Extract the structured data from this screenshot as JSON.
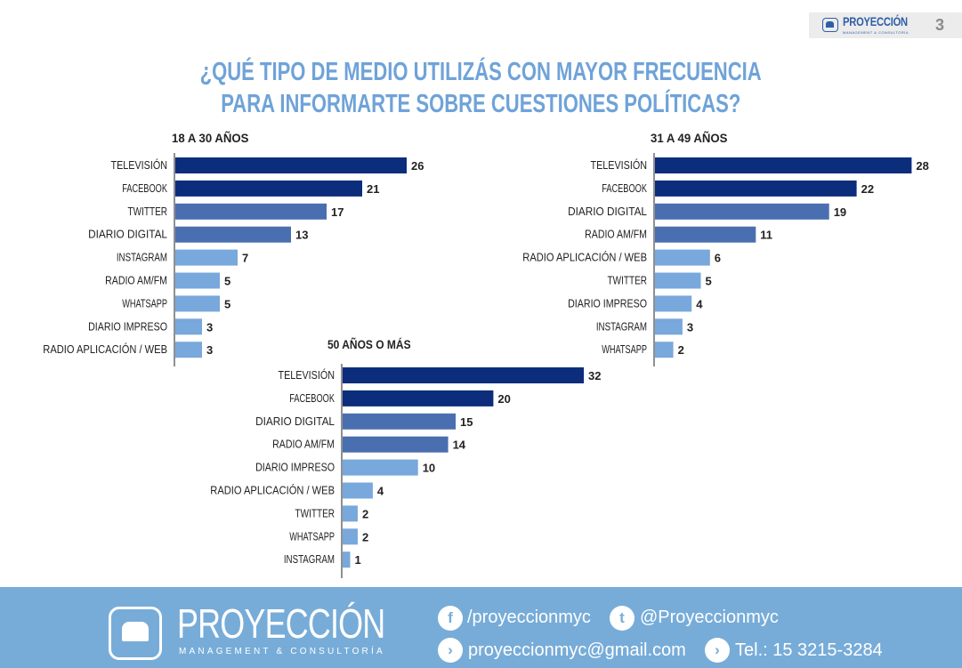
{
  "header": {
    "brand": "PROYECCIÓN",
    "brand_sub": "MANAGEMENT & CONSULTORÍA",
    "page_number": "3"
  },
  "title_lines": [
    "¿QUÉ TIPO DE MEDIO UTILIZÁS CON MAYOR FRECUENCIA",
    "PARA INFORMARTE SOBRE CUESTIONES POLÍTICAS?"
  ],
  "palette": {
    "dark": "#0b2d7c",
    "medium": "#4a6fb0",
    "light": "#78a8dc",
    "title": "#6fa3d8",
    "footer": "#77acd8"
  },
  "chart_data": [
    {
      "type": "bar",
      "orientation": "horizontal",
      "title": "18 A 30 AÑOS",
      "categories": [
        "TELEVISIÓN",
        "FACEBOOK",
        "TWITTER",
        "DIARIO DIGITAL",
        "INSTAGRAM",
        "RADIO AM/FM",
        "WHATSAPP",
        "DIARIO IMPRESO",
        "RADIO APLICACIÓN / WEB"
      ],
      "values": [
        26,
        21,
        17,
        13,
        7,
        5,
        5,
        3,
        3
      ],
      "colors": [
        "#0b2d7c",
        "#0b2d7c",
        "#4a6fb0",
        "#4a6fb0",
        "#78a8dc",
        "#78a8dc",
        "#78a8dc",
        "#78a8dc",
        "#78a8dc"
      ]
    },
    {
      "type": "bar",
      "orientation": "horizontal",
      "title": "31 A 49 AÑOS",
      "categories": [
        "TELEVISIÓN",
        "FACEBOOK",
        "DIARIO DIGITAL",
        "RADIO AM/FM",
        "RADIO APLICACIÓN / WEB",
        "TWITTER",
        "DIARIO IMPRESO",
        "INSTAGRAM",
        "WHATSAPP"
      ],
      "values": [
        28,
        22,
        19,
        11,
        6,
        5,
        4,
        3,
        2
      ],
      "colors": [
        "#0b2d7c",
        "#0b2d7c",
        "#4a6fb0",
        "#4a6fb0",
        "#78a8dc",
        "#78a8dc",
        "#78a8dc",
        "#78a8dc",
        "#78a8dc"
      ]
    },
    {
      "type": "bar",
      "orientation": "horizontal",
      "title": "50 AÑOS O MÁS",
      "categories": [
        "TELEVISIÓN",
        "FACEBOOK",
        "DIARIO DIGITAL",
        "RADIO AM/FM",
        "DIARIO IMPRESO",
        "RADIO APLICACIÓN / WEB",
        "TWITTER",
        "WHATSAPP",
        "INSTAGRAM"
      ],
      "values": [
        32,
        20,
        15,
        14,
        10,
        4,
        2,
        2,
        1
      ],
      "colors": [
        "#0b2d7c",
        "#0b2d7c",
        "#4a6fb0",
        "#4a6fb0",
        "#78a8dc",
        "#78a8dc",
        "#78a8dc",
        "#78a8dc",
        "#78a8dc"
      ]
    }
  ],
  "footer": {
    "brand": "PROYECCIÓN",
    "brand_sub": "MANAGEMENT & CONSULTORÍA",
    "facebook": "/proyeccionmyc",
    "twitter": "@Proyeccionmyc",
    "email": "proyeccionmyc@gmail.com",
    "phone": "Tel.: 15 3215-3284"
  }
}
